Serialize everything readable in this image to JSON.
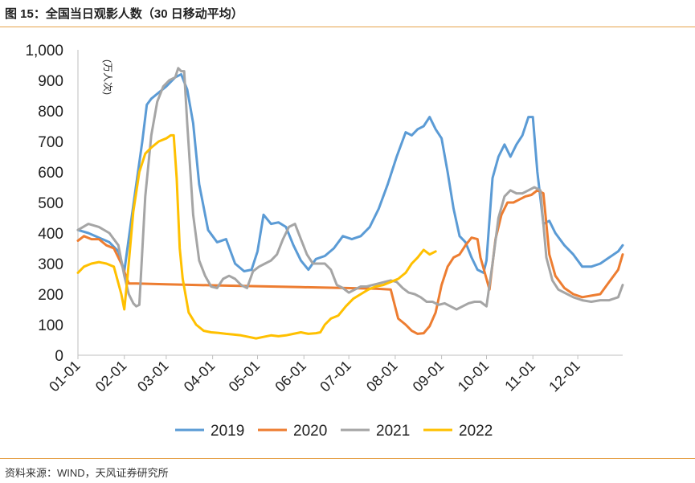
{
  "figure": {
    "title": "图 15：全国当日观影人数（30 日移动平均）",
    "source": "资料来源：WIND，天风证券研究所"
  },
  "chart_data": {
    "type": "line",
    "title": "全国当日观影人数（30 日移动平均）",
    "ylabel": "(万人次)",
    "xlabel": "",
    "ylim": [
      0,
      1000
    ],
    "yticks": [
      0,
      100,
      200,
      300,
      400,
      500,
      600,
      700,
      800,
      900,
      1000
    ],
    "ytick_labels": [
      "0",
      "100",
      "200",
      "300",
      "400",
      "500",
      "600",
      "700",
      "800",
      "900",
      "1,000"
    ],
    "xlim": [
      1,
      365
    ],
    "xticks": [
      1,
      32,
      60,
      91,
      121,
      152,
      182,
      213,
      244,
      274,
      305,
      335
    ],
    "xtick_labels": [
      "01-01",
      "02-01",
      "03-01",
      "04-01",
      "05-01",
      "06-01",
      "07-01",
      "08-01",
      "09-01",
      "10-01",
      "11-01",
      "12-01"
    ],
    "legend": "bottom",
    "grid": false,
    "series": [
      {
        "name": "2019",
        "color": "#5b9bd5",
        "x": [
          1,
          8,
          15,
          22,
          28,
          32,
          36,
          40,
          44,
          47,
          50,
          55,
          60,
          66,
          70,
          74,
          78,
          82,
          88,
          94,
          100,
          106,
          112,
          117,
          121,
          125,
          130,
          135,
          140,
          145,
          150,
          155,
          160,
          166,
          172,
          178,
          184,
          190,
          196,
          202,
          208,
          214,
          220,
          224,
          228,
          232,
          236,
          240,
          244,
          248,
          252,
          256,
          260,
          264,
          268,
          272,
          274,
          278,
          282,
          286,
          290,
          294,
          298,
          302,
          305,
          308,
          312,
          316,
          320,
          326,
          332,
          338,
          344,
          350,
          356,
          362,
          365
        ],
        "y": [
          410,
          400,
          385,
          370,
          340,
          275,
          420,
          560,
          700,
          820,
          840,
          860,
          880,
          910,
          920,
          870,
          760,
          560,
          410,
          370,
          380,
          300,
          275,
          280,
          340,
          460,
          430,
          435,
          420,
          360,
          310,
          280,
          315,
          325,
          350,
          390,
          380,
          390,
          420,
          480,
          560,
          650,
          730,
          720,
          740,
          750,
          780,
          740,
          710,
          600,
          480,
          390,
          370,
          320,
          280,
          270,
          310,
          580,
          650,
          690,
          650,
          690,
          720,
          780,
          780,
          600,
          430,
          440,
          400,
          360,
          330,
          290,
          290,
          300,
          320,
          340,
          360
        ]
      },
      {
        "name": "2020",
        "color": "#ed7d31",
        "x": [
          1,
          5,
          10,
          15,
          20,
          25,
          30,
          33,
          35,
          40,
          60,
          90,
          120,
          150,
          180,
          200,
          210,
          215,
          220,
          224,
          228,
          232,
          236,
          240,
          244,
          248,
          252,
          256,
          260,
          264,
          268,
          270,
          274,
          276,
          280,
          284,
          288,
          292,
          296,
          300,
          304,
          308,
          312,
          316,
          320,
          326,
          332,
          338,
          344,
          350,
          356,
          362,
          365
        ],
        "y": [
          375,
          390,
          380,
          380,
          360,
          350,
          300,
          260,
          235,
          235,
          232,
          229,
          226,
          223,
          220,
          218,
          215,
          120,
          100,
          80,
          70,
          72,
          95,
          140,
          230,
          290,
          320,
          330,
          360,
          385,
          380,
          320,
          250,
          215,
          380,
          460,
          500,
          500,
          510,
          520,
          525,
          540,
          530,
          330,
          260,
          220,
          200,
          190,
          195,
          200,
          240,
          280,
          330
        ]
      },
      {
        "name": "2021",
        "color": "#a5a5a5",
        "x": [
          1,
          8,
          15,
          22,
          28,
          32,
          35,
          38,
          40,
          42,
          46,
          50,
          54,
          58,
          62,
          66,
          68,
          70,
          72,
          74,
          78,
          82,
          86,
          90,
          94,
          98,
          102,
          106,
          110,
          114,
          118,
          122,
          126,
          130,
          134,
          138,
          142,
          146,
          150,
          154,
          158,
          162,
          166,
          170,
          174,
          178,
          182,
          186,
          190,
          194,
          198,
          202,
          206,
          210,
          214,
          218,
          222,
          226,
          230,
          234,
          238,
          242,
          246,
          250,
          254,
          258,
          262,
          266,
          270,
          274,
          278,
          282,
          286,
          290,
          294,
          298,
          302,
          306,
          310,
          314,
          318,
          322,
          326,
          332,
          338,
          344,
          350,
          356,
          362,
          365
        ],
        "y": [
          410,
          430,
          420,
          400,
          360,
          260,
          200,
          170,
          160,
          165,
          520,
          720,
          830,
          880,
          900,
          910,
          940,
          930,
          930,
          760,
          460,
          310,
          260,
          225,
          220,
          250,
          260,
          250,
          230,
          220,
          275,
          290,
          300,
          310,
          330,
          380,
          420,
          430,
          380,
          330,
          300,
          300,
          300,
          280,
          230,
          220,
          205,
          215,
          225,
          225,
          230,
          235,
          240,
          245,
          240,
          220,
          205,
          200,
          190,
          175,
          175,
          165,
          170,
          160,
          150,
          160,
          170,
          175,
          175,
          160,
          300,
          450,
          520,
          540,
          530,
          530,
          540,
          550,
          540,
          320,
          245,
          215,
          205,
          190,
          180,
          175,
          180,
          180,
          190,
          230
        ]
      },
      {
        "name": "2022",
        "color": "#ffc000",
        "x": [
          1,
          5,
          10,
          15,
          20,
          25,
          30,
          32,
          34,
          38,
          42,
          46,
          50,
          55,
          60,
          63,
          65,
          67,
          69,
          71,
          75,
          80,
          85,
          90,
          95,
          100,
          105,
          110,
          115,
          120,
          125,
          130,
          135,
          140,
          145,
          150,
          155,
          160,
          163,
          166,
          170,
          175,
          180,
          185,
          190,
          195,
          200,
          205,
          210,
          215,
          220,
          224,
          228,
          232,
          236,
          240
        ],
        "y": [
          270,
          290,
          300,
          305,
          300,
          290,
          200,
          150,
          250,
          470,
          600,
          660,
          680,
          700,
          710,
          720,
          720,
          580,
          350,
          250,
          140,
          100,
          80,
          75,
          73,
          70,
          68,
          65,
          60,
          55,
          60,
          65,
          62,
          65,
          70,
          75,
          70,
          72,
          75,
          100,
          120,
          130,
          160,
          185,
          200,
          215,
          225,
          230,
          240,
          250,
          270,
          300,
          320,
          345,
          330,
          340
        ]
      }
    ]
  }
}
